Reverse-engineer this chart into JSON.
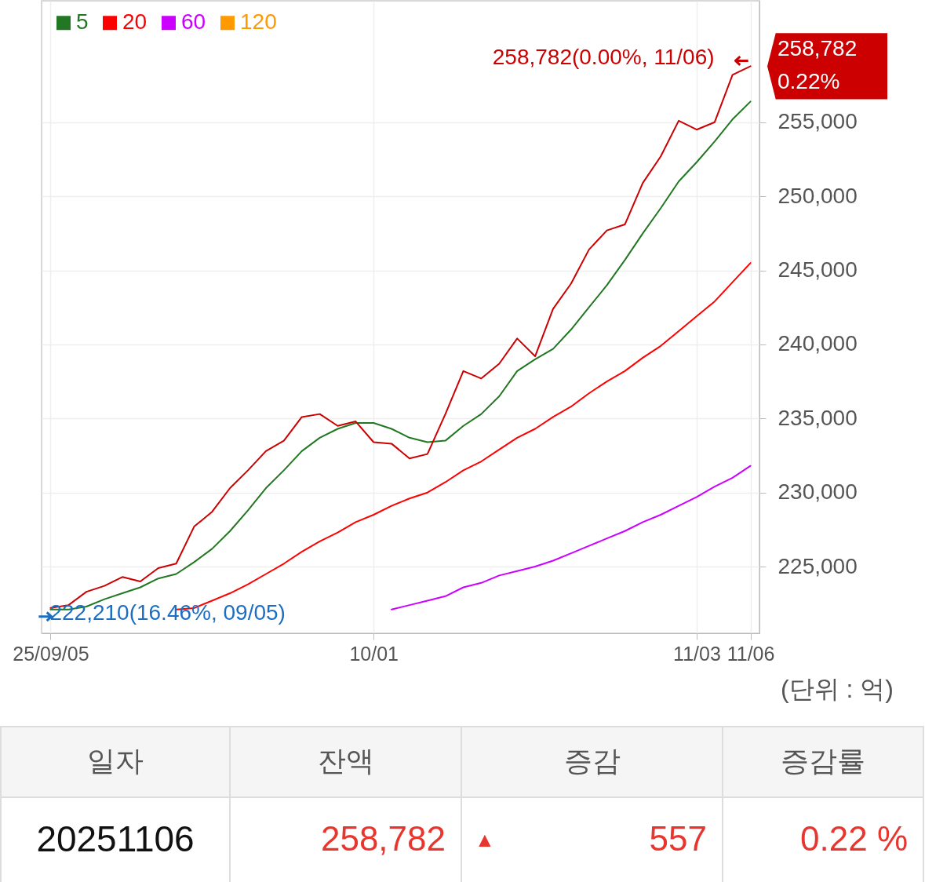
{
  "chart_data": [
    {
      "type": "line",
      "categories": [
        "25/09/05",
        null,
        null,
        null,
        null,
        null,
        null,
        null,
        null,
        null,
        null,
        null,
        null,
        null,
        null,
        null,
        null,
        null,
        "10/01",
        null,
        null,
        null,
        null,
        null,
        null,
        null,
        null,
        null,
        null,
        null,
        null,
        null,
        null,
        null,
        null,
        null,
        "11/03",
        null,
        null,
        "11/06"
      ],
      "series": [
        {
          "color": "#cc0000",
          "values": [
            222210,
            222400,
            223300,
            223700,
            224300,
            224000,
            224900,
            225200,
            227700,
            228700,
            230300,
            231500,
            232800,
            233500,
            235100,
            235300,
            234500,
            234800,
            233400,
            233300,
            232300,
            232600,
            235300,
            238200,
            237700,
            238700,
            240400,
            239200,
            242400,
            244100,
            246400,
            247700,
            248100,
            250900,
            252700,
            255100,
            254500,
            255000,
            258200,
            258782
          ]
        },
        {
          "name": "5",
          "color": "#227722",
          "values": [
            222100,
            222100,
            222300,
            222800,
            223200,
            223600,
            224200,
            224500,
            225300,
            226200,
            227400,
            228800,
            230300,
            231500,
            232800,
            233700,
            234300,
            234700,
            234700,
            234300,
            233700,
            233400,
            233500,
            234500,
            235300,
            236500,
            238200,
            239000,
            239700,
            241000,
            242500,
            244000,
            245700,
            247500,
            249200,
            251000,
            252300,
            253700,
            255200,
            256400
          ]
        },
        {
          "name": "20",
          "color": "#ff0000",
          "values": [
            null,
            null,
            null,
            null,
            null,
            null,
            null,
            222100,
            222200,
            222700,
            223200,
            223800,
            224500,
            225200,
            226000,
            226700,
            227300,
            228000,
            228500,
            229100,
            229600,
            230000,
            230700,
            231500,
            232100,
            232900,
            233700,
            234300,
            235100,
            235800,
            236700,
            237500,
            238200,
            239100,
            239900,
            240900,
            241900,
            242900,
            244200,
            245500
          ]
        },
        {
          "name": "60",
          "color": "#cc00ff",
          "values": [
            null,
            null,
            null,
            null,
            null,
            null,
            null,
            null,
            null,
            null,
            null,
            null,
            null,
            null,
            null,
            null,
            null,
            null,
            null,
            222100,
            222400,
            222700,
            223000,
            223600,
            223900,
            224400,
            224700,
            225000,
            225400,
            225900,
            226400,
            226900,
            227400,
            228000,
            228500,
            229100,
            229700,
            230400,
            231000,
            231800
          ]
        },
        {
          "name": "120",
          "color": "#ff9900",
          "values": [
            null,
            null,
            null,
            null,
            null,
            null,
            null,
            null,
            null,
            null,
            null,
            null,
            null,
            null,
            null,
            null,
            null,
            null,
            null,
            null,
            null,
            null,
            null,
            null,
            null,
            null,
            null,
            null,
            null,
            null,
            null,
            null,
            null,
            null,
            null,
            null,
            null,
            null,
            null,
            null
          ]
        }
      ],
      "ylim": [
        220500,
        263200
      ],
      "yticks": [
        {
          "value": 225000,
          "label": "225,000"
        },
        {
          "value": 230000,
          "label": "230,000"
        },
        {
          "value": 235000,
          "label": "235,000"
        },
        {
          "value": 240000,
          "label": "240,000"
        },
        {
          "value": 245000,
          "label": "245,000"
        },
        {
          "value": 250000,
          "label": "250,000"
        },
        {
          "value": 255000,
          "label": "255,000"
        }
      ],
      "grid": true,
      "legend": "top left",
      "annotations": [
        {
          "text": "258,782(0.00%, 11/06)",
          "x": "11/06",
          "y": 258782
        },
        {
          "text": "222,210(16.46%, 09/05)",
          "x": "25/09/05",
          "y": 222210
        },
        {
          "text": "258,782\n0.22%",
          "x": "11/06",
          "y": 258782
        },
        "(단위 : 억)"
      ]
    },
    {
      "type": "other",
      "categories": [
        "일자",
        "잔액",
        "증감",
        "증감률"
      ],
      "annotations": [
        "20251106",
        "258,782",
        "▲",
        "557",
        "0.22 %"
      ]
    }
  ]
}
